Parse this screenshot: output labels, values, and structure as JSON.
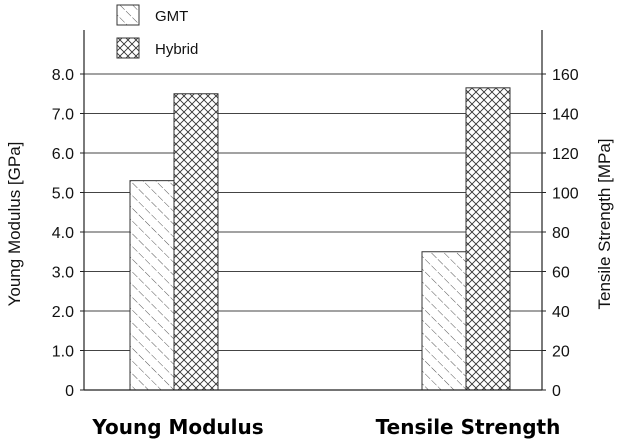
{
  "chart_data": {
    "type": "bar",
    "categories": [
      "Young Modulus",
      "Tensile Strength"
    ],
    "series": [
      {
        "name": "GMT",
        "pattern": "diagonal-hatch",
        "values": [
          5.3,
          70
        ]
      },
      {
        "name": "Hybrid",
        "pattern": "cross-hatch",
        "values": [
          7.5,
          153
        ]
      }
    ],
    "y_left": {
      "label": "Young Modulus [GPa]",
      "range": [
        0,
        8
      ],
      "ticks": [
        "0",
        "1.0",
        "2.0",
        "3.0",
        "4.0",
        "5.0",
        "6.0",
        "7.0",
        "8.0"
      ],
      "applies_to": "Young Modulus"
    },
    "y_right": {
      "label": "Tensile Strength [MPa]",
      "range": [
        0,
        160
      ],
      "ticks": [
        "0",
        "20",
        "40",
        "60",
        "80",
        "100",
        "120",
        "140",
        "160"
      ],
      "applies_to": "Tensile Strength"
    },
    "grid": true,
    "legend_position": "top-left",
    "title": ""
  }
}
